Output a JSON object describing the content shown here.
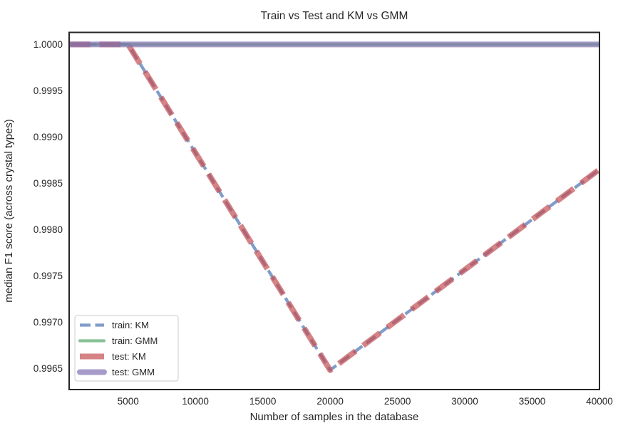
{
  "title": "Train vs Test and KM vs GMM",
  "xlabel": "Number of samples in the database",
  "ylabel": "median F1 score (across crystal types)",
  "colors": {
    "train_km": "#4C72B0",
    "train_gmm": "#55A868",
    "test_km": "#C44E52",
    "test_gmm": "#8172B2",
    "spine": "#262626",
    "text": "#262626",
    "legend_border": "#cccccc"
  },
  "legend": {
    "position": "lower left",
    "entries": [
      {
        "label": "train: KM",
        "color": "#4C72B0",
        "width": 4.3,
        "dash": "15 6.5",
        "cap": "butt"
      },
      {
        "label": "train: GMM",
        "color": "#55A868",
        "width": 4.3,
        "dash": "",
        "cap": "round"
      },
      {
        "label": "test: KM",
        "color": "#C44E52",
        "width": 8,
        "dash": "",
        "cap": "butt"
      },
      {
        "label": "test: GMM",
        "color": "#8172B2",
        "width": 8,
        "dash": "",
        "cap": "round"
      }
    ]
  },
  "chart_data": {
    "type": "line",
    "x": [
      625,
      1250,
      2500,
      5000,
      10000,
      20000,
      40000
    ],
    "series": [
      {
        "name": "train: KM",
        "color": "#4C72B0",
        "style": "dashed",
        "linewidth": 4.3,
        "values": [
          1.0,
          1.0,
          1.0,
          1.0,
          0.99883,
          0.99648,
          0.99865
        ]
      },
      {
        "name": "train: GMM",
        "color": "#55A868",
        "style": "solid",
        "linewidth": 4.3,
        "values": [
          1.0,
          1.0,
          1.0,
          1.0,
          1.0,
          1.0,
          1.0
        ]
      },
      {
        "name": "test: KM",
        "color": "#C44E52",
        "style": "dashed",
        "linewidth": 8,
        "values": [
          1.0,
          1.0,
          1.0,
          1.0,
          0.99883,
          0.99648,
          0.99865
        ]
      },
      {
        "name": "test: GMM",
        "color": "#8172B2",
        "style": "solid",
        "linewidth": 8,
        "values": [
          1.0,
          1.0,
          1.0,
          1.0,
          1.0,
          1.0,
          1.0
        ]
      }
    ],
    "alpha": 0.7,
    "xticks": [
      5000,
      10000,
      15000,
      20000,
      25000,
      30000,
      35000,
      40000
    ],
    "yticks": [
      "1.0000",
      "0.9995",
      "0.9990",
      "0.9985",
      "0.9980",
      "0.9975",
      "0.9970",
      "0.9965"
    ],
    "xlim": [
      625,
      40000
    ],
    "ylim": [
      0.99627,
      1.00013
    ],
    "grid": false,
    "legend_position": "lower left"
  }
}
